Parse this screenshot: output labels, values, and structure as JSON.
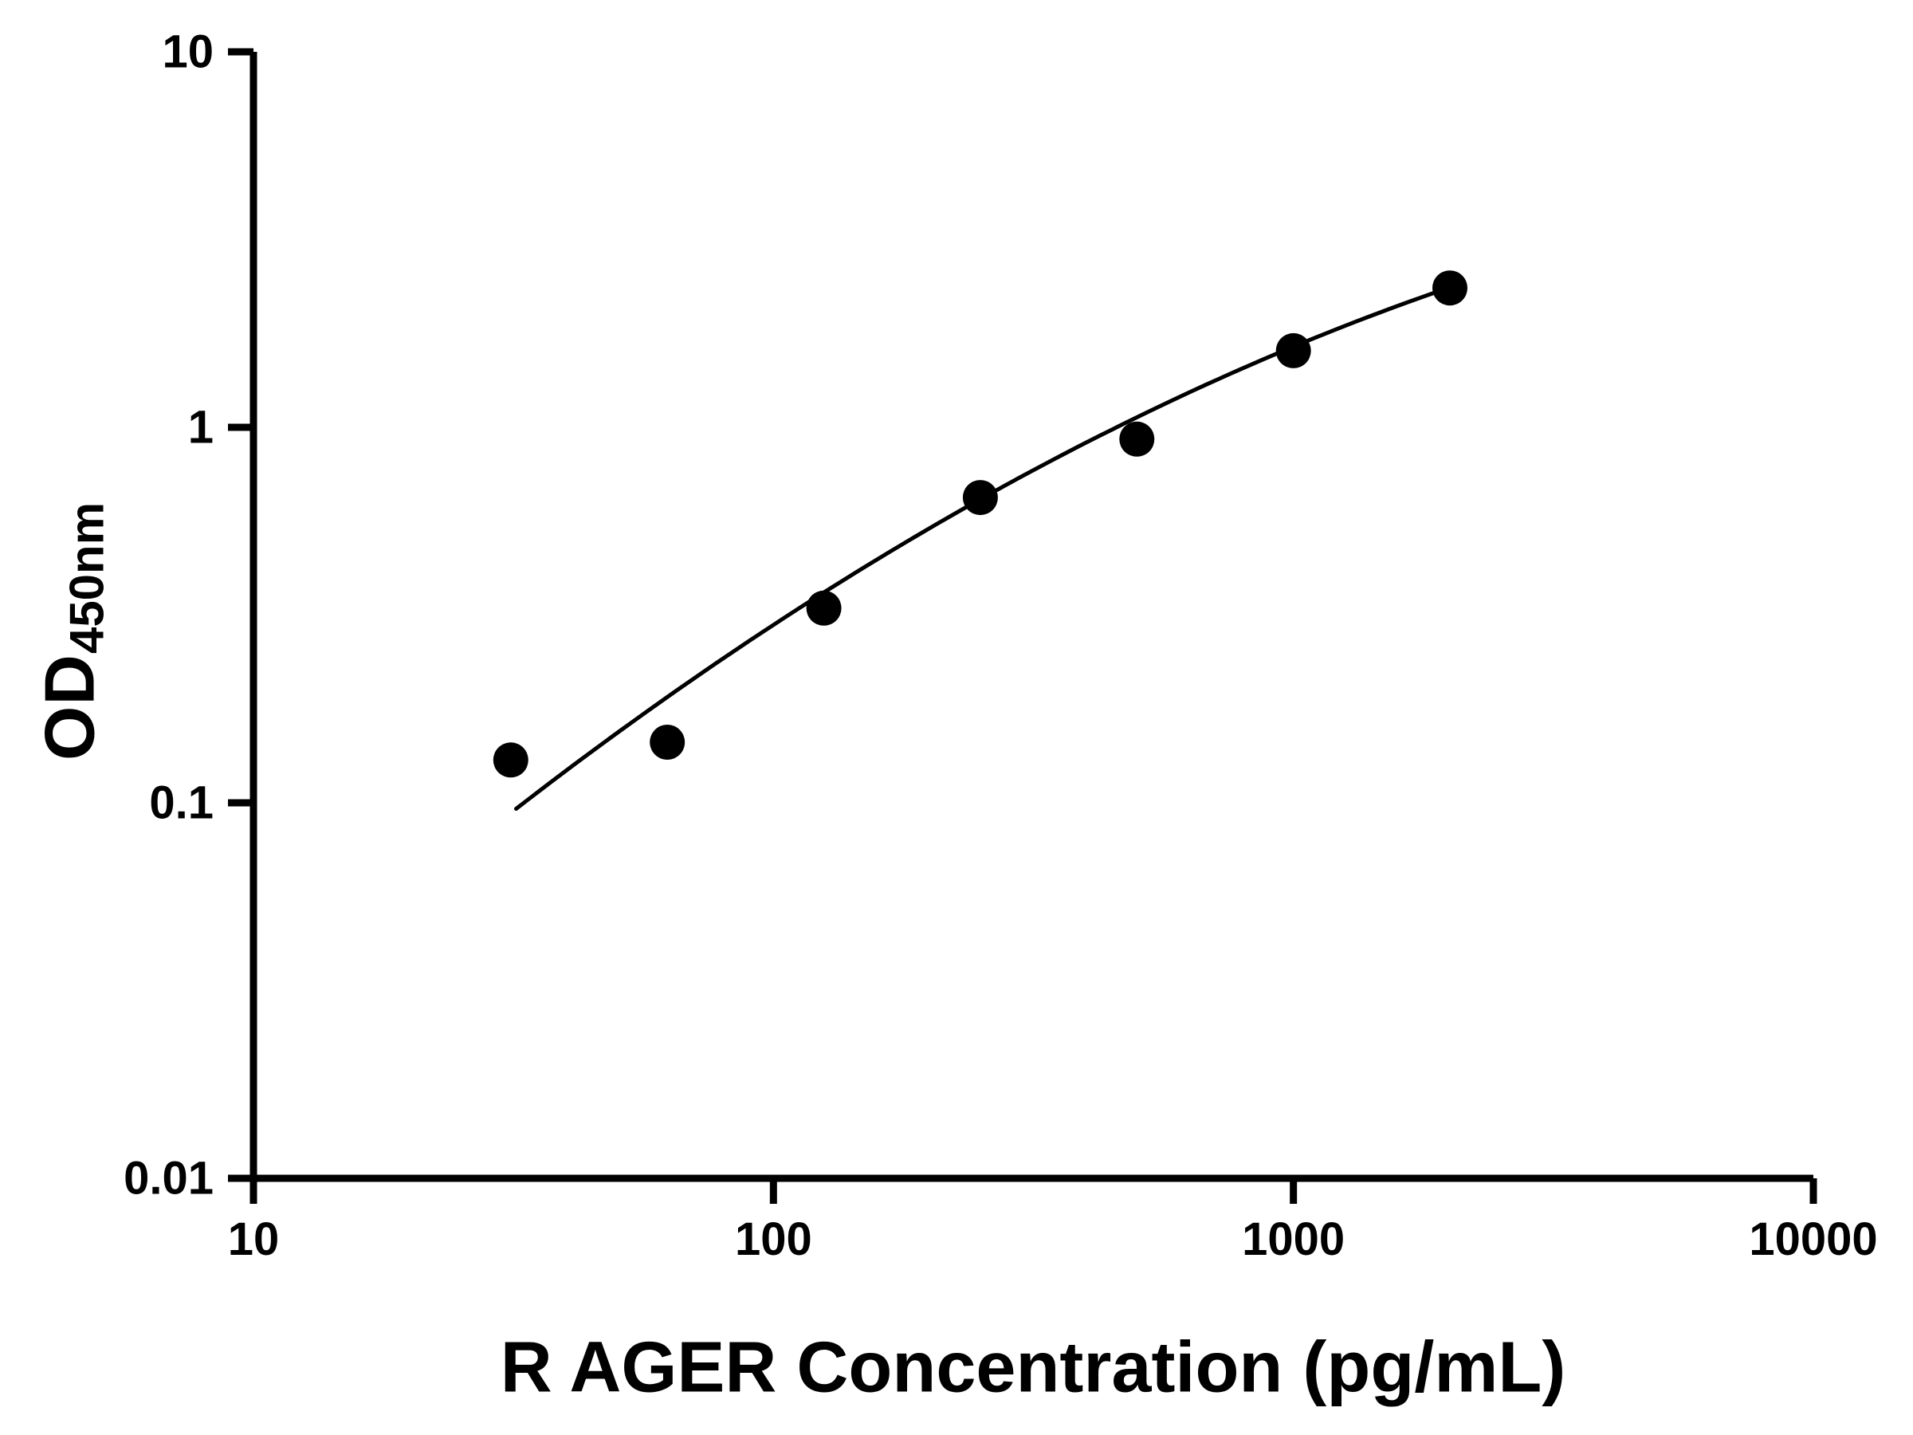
{
  "chart_data": {
    "type": "scatter",
    "title": "",
    "xlabel": "R AGER Concentration (pg/mL)",
    "ylabel_main": "OD",
    "ylabel_sub": "450nm",
    "x_scale": "log",
    "y_scale": "log",
    "xlim": [
      10,
      10000
    ],
    "ylim": [
      0.01,
      10
    ],
    "x_ticks": [
      10,
      100,
      1000,
      10000
    ],
    "x_tick_labels": [
      "10",
      "100",
      "1000",
      "10000"
    ],
    "y_ticks": [
      0.01,
      0.1,
      1,
      10
    ],
    "y_tick_labels": [
      "0.01",
      "0.1",
      "1",
      "10"
    ],
    "grid": false,
    "legend": "none",
    "points": {
      "x": [
        31.25,
        62.5,
        125,
        250,
        500,
        1000,
        2000
      ],
      "y": [
        0.13,
        0.145,
        0.33,
        0.65,
        0.93,
        1.6,
        2.35
      ]
    },
    "fit_curve": {
      "type": "quadratic_loglog",
      "coeffs": [
        -3.006,
        1.5725,
        -0.1663
      ],
      "x_range": [
        32,
        2000
      ]
    },
    "colors": {
      "points": "#000000",
      "line": "#000000",
      "axes": "#000000",
      "background": "#ffffff"
    }
  }
}
